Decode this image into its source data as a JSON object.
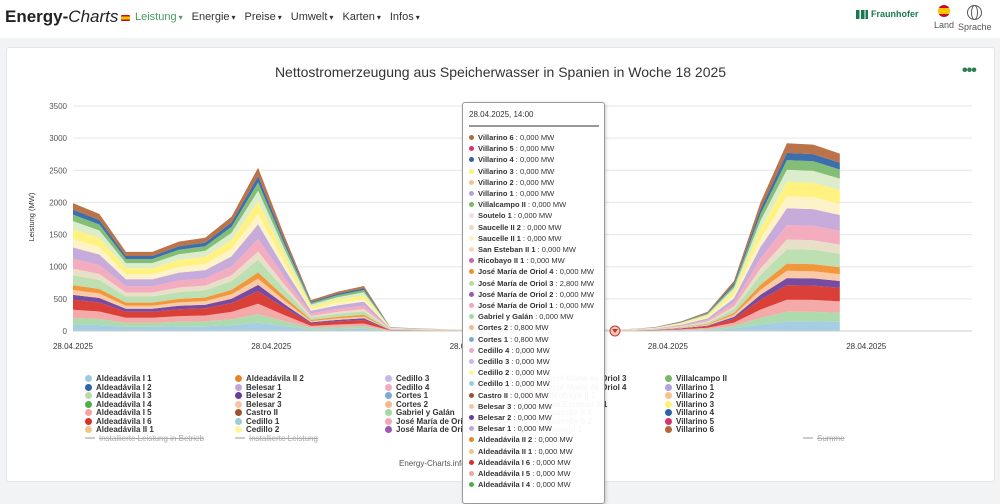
{
  "header": {
    "brand_main": "Energy-",
    "brand_italic": "Charts",
    "nav": [
      {
        "label": "Leistung",
        "active": true
      },
      {
        "label": "Energie",
        "active": false
      },
      {
        "label": "Preise",
        "active": false
      },
      {
        "label": "Umwelt",
        "active": false
      },
      {
        "label": "Karten",
        "active": false
      },
      {
        "label": "Infos",
        "active": false
      }
    ],
    "fraunhofer": "Fraunhofer",
    "land_label": "Land",
    "sprache_label": "Sprache"
  },
  "credit": "Energy-Charts.info",
  "tooltip": {
    "header": "28.04.2025, 14:00",
    "rows": [
      {
        "name": "Villarino 6",
        "value": "0,000 MW",
        "color": "#b5673b"
      },
      {
        "name": "Villarino 5",
        "value": "0,000 MW",
        "color": "#d6336c"
      },
      {
        "name": "Villarino 4",
        "value": "0,000 MW",
        "color": "#2e63a6"
      },
      {
        "name": "Villarino 3",
        "value": "0,000 MW",
        "color": "#fff176"
      },
      {
        "name": "Villarino 2",
        "value": "0,000 MW",
        "color": "#f6c28b"
      },
      {
        "name": "Villarino 1",
        "value": "0,000 MW",
        "color": "#b3a3d9"
      },
      {
        "name": "Villalcampo II",
        "value": "0,000 MW",
        "color": "#78b86b"
      },
      {
        "name": "Soutelo 1",
        "value": "0,000 MW",
        "color": "#f4dce6"
      },
      {
        "name": "Saucelle II 2",
        "value": "0,000 MW",
        "color": "#e6dcc4"
      },
      {
        "name": "Saucelle II 1",
        "value": "0,000 MW",
        "color": "#fdf2c4"
      },
      {
        "name": "San Esteban II 1",
        "value": "0,000 MW",
        "color": "#f7d7b2"
      },
      {
        "name": "Ricobayo II 1",
        "value": "0,000 MW",
        "color": "#c46aa8"
      },
      {
        "name": "José María de Oriol 4",
        "value": "0,000 MW",
        "color": "#f28e2b"
      },
      {
        "name": "José María de Oriol 3",
        "value": "2,800 MW",
        "color": "#b7dcaa"
      },
      {
        "name": "José María de Oriol 2",
        "value": "0,000 MW",
        "color": "#9b59b6"
      },
      {
        "name": "José María de Oriol 1",
        "value": "0,000 MW",
        "color": "#f3a6b8"
      },
      {
        "name": "Gabriel y Galán",
        "value": "0,000 MW",
        "color": "#a6d8a6"
      },
      {
        "name": "Cortes 2",
        "value": "0,800 MW",
        "color": "#f6b98a"
      },
      {
        "name": "Cortes 1",
        "value": "0,800 MW",
        "color": "#7ea7d8"
      },
      {
        "name": "Cedillo 4",
        "value": "0,000 MW",
        "color": "#f1a9c4"
      },
      {
        "name": "Cedillo 3",
        "value": "0,000 MW",
        "color": "#c7b8e6"
      },
      {
        "name": "Cedillo 2",
        "value": "0,000 MW",
        "color": "#fff59d"
      },
      {
        "name": "Cedillo 1",
        "value": "0,000 MW",
        "color": "#9ad0d3"
      },
      {
        "name": "Castro II",
        "value": "0,000 MW",
        "color": "#a0522d"
      },
      {
        "name": "Belesar 3",
        "value": "0,000 MW",
        "color": "#f7c59f"
      },
      {
        "name": "Belesar 2",
        "value": "0,000 MW",
        "color": "#6a3d9a"
      },
      {
        "name": "Belesar 1",
        "value": "0,000 MW",
        "color": "#c2a5d8"
      },
      {
        "name": "Aldeadávila II 2",
        "value": "0,000 MW",
        "color": "#e6862c"
      },
      {
        "name": "Aldeadávila II 1",
        "value": "0,000 MW",
        "color": "#f2c48a"
      },
      {
        "name": "Aldeadávila I 6",
        "value": "0,000 MW",
        "color": "#d73027"
      },
      {
        "name": "Aldeadávila I 5",
        "value": "0,000 MW",
        "color": "#f4a3a3"
      },
      {
        "name": "Aldeadávila I 4",
        "value": "0,000 MW",
        "color": "#4daf4a"
      }
    ]
  },
  "chart_data": {
    "type": "area",
    "title": "Nettostromerzeugung aus Speicherwasser in Spanien in Woche 18 2025",
    "ylabel": "Leistung (MW)",
    "ylim": [
      0,
      3500
    ],
    "yticks": [
      0,
      500,
      1000,
      1500,
      2000,
      2500,
      3000,
      3500
    ],
    "x_tick_labels": [
      "28.04.2025",
      "28.04.2025",
      "28.04.2025",
      "28.04.2025",
      "28.04.2025"
    ],
    "x_tick_indices": [
      0,
      7.5,
      15,
      22.5,
      30
    ],
    "x_count": 35,
    "total": [
      1990,
      1820,
      1230,
      1230,
      1390,
      1450,
      1780,
      2540,
      1480,
      480,
      610,
      700,
      60,
      40,
      30,
      20,
      15,
      15,
      15,
      15,
      20,
      30,
      60,
      150,
      300,
      780,
      2000,
      2920,
      2900,
      2760
    ],
    "band_colors": [
      "#9ecae1",
      "#a6d8a6",
      "#f4a3a3",
      "#d73027",
      "#6a3d9a",
      "#f7c59f",
      "#f28e2b",
      "#b7dcaa",
      "#e6dcc4",
      "#f3a6b8",
      "#c2a5d8",
      "#fdf2c4",
      "#fff176",
      "#d9ecc8",
      "#78b86b",
      "#2e63a6",
      "#b5673b"
    ],
    "band_weights": [
      4,
      4,
      5,
      6,
      3,
      3,
      3,
      6,
      4,
      6,
      7,
      5,
      6,
      5,
      4,
      3,
      4
    ],
    "legend": [
      {
        "name": "Aldeadávila I 1",
        "color": "#9ecae1"
      },
      {
        "name": "Aldeadávila I 2",
        "color": "#2e63a6"
      },
      {
        "name": "Aldeadávila I 3",
        "color": "#b7dcaa"
      },
      {
        "name": "Aldeadávila I 4",
        "color": "#4daf4a"
      },
      {
        "name": "Aldeadávila I 5",
        "color": "#f4a3a3"
      },
      {
        "name": "Aldeadávila I 6",
        "color": "#d73027"
      },
      {
        "name": "Aldeadávila II 1",
        "color": "#f2c48a"
      },
      {
        "name": "Aldeadávila II 2",
        "color": "#e6862c"
      },
      {
        "name": "Belesar 1",
        "color": "#c2a5d8"
      },
      {
        "name": "Belesar 2",
        "color": "#6a3d9a"
      },
      {
        "name": "Belesar 3",
        "color": "#f7c59f"
      },
      {
        "name": "Castro II",
        "color": "#a0522d"
      },
      {
        "name": "Cedillo 1",
        "color": "#9ad0d3"
      },
      {
        "name": "Cedillo 2",
        "color": "#fff59d"
      },
      {
        "name": "Cedillo 3",
        "color": "#c7b8e6"
      },
      {
        "name": "Cedillo 4",
        "color": "#f1a9c4"
      },
      {
        "name": "Cortes 1",
        "color": "#7ea7d8"
      },
      {
        "name": "Cortes 2",
        "color": "#f6b98a"
      },
      {
        "name": "Gabriel y Galán",
        "color": "#a6d8a6"
      },
      {
        "name": "José María de Oriol 1",
        "color": "#f3a6b8"
      },
      {
        "name": "José María de Oriol 2",
        "color": "#9b59b6"
      },
      {
        "name": "José María de Oriol 3",
        "color": "#b7dcaa"
      },
      {
        "name": "José María de Oriol 4",
        "color": "#f28e2b"
      },
      {
        "name": "Ricobayo II 1",
        "color": "#c46aa8"
      },
      {
        "name": "San Esteban II 1",
        "color": "#f7d7b2"
      },
      {
        "name": "Saucelle II 1",
        "color": "#fdf2c4"
      },
      {
        "name": "Saucelle II 2",
        "color": "#e6dcc4"
      },
      {
        "name": "Soutelo 1",
        "color": "#f4dce6"
      },
      {
        "name": "Villalcampo II",
        "color": "#78b86b"
      },
      {
        "name": "Villarino 1",
        "color": "#b3a3d9"
      },
      {
        "name": "Villarino 2",
        "color": "#f6c28b"
      },
      {
        "name": "Villarino 3",
        "color": "#fff176"
      },
      {
        "name": "Villarino 4",
        "color": "#2e63a6"
      },
      {
        "name": "Villarino 5",
        "color": "#d6336c"
      },
      {
        "name": "Villarino 6",
        "color": "#b5673b"
      }
    ],
    "legend_lines": [
      {
        "name": "Installierte Leistung in Betrieb"
      },
      {
        "name": "Installierte Leistung"
      },
      {
        "name": "Summe"
      }
    ]
  }
}
